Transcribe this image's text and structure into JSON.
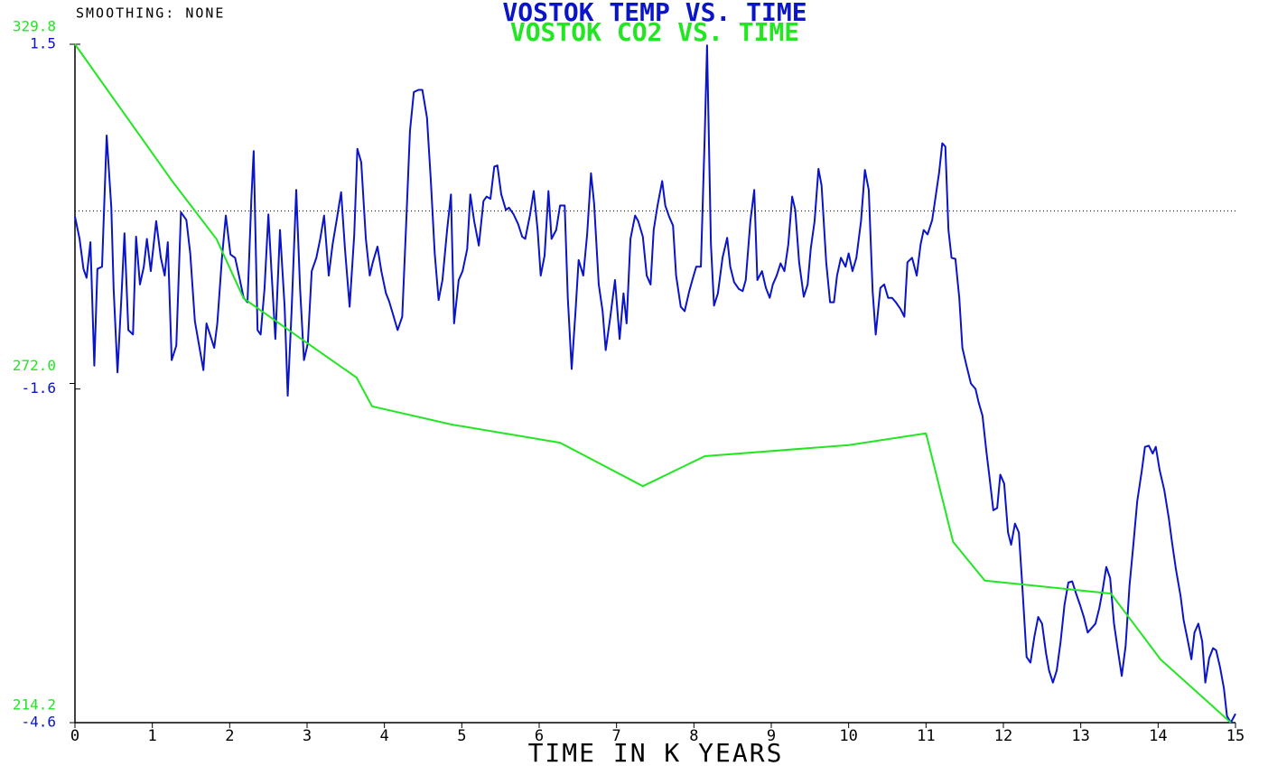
{
  "chart_data": {
    "type": "line",
    "subtitle": "SMOOTHING: NONE",
    "x_label": "TIME IN K YEARS",
    "xlim": [
      0,
      15
    ],
    "xticks": [
      0,
      1,
      2,
      3,
      4,
      5,
      6,
      7,
      8,
      9,
      10,
      11,
      12,
      13,
      14,
      15
    ],
    "ylim": [
      -4.6,
      1.5
    ],
    "yticks": [
      -4.6,
      -1.6,
      1.5
    ],
    "y2lim": [
      214.2,
      329.8
    ],
    "y2ticks": [
      214.2,
      {
        "value": 272,
        "label": "272.0"
      },
      329.8
    ],
    "reference_line": 0,
    "series": [
      {
        "name": "VOSTOK TEMP VS. TIME",
        "color": "#0a14c8",
        "x": [
          0,
          0.06,
          0.11,
          0.15,
          0.2,
          0.25,
          0.29,
          0.35,
          0.41,
          0.47,
          0.5,
          0.55,
          0.6,
          0.64,
          0.69,
          0.75,
          0.79,
          0.84,
          0.89,
          0.93,
          0.98,
          1.05,
          1.11,
          1.16,
          1.2,
          1.25,
          1.31,
          1.37,
          1.44,
          1.49,
          1.55,
          1.61,
          1.66,
          1.7,
          1.75,
          1.8,
          1.84,
          1.9,
          1.95,
          2.01,
          2.07,
          2.12,
          2.18,
          2.23,
          2.28,
          2.31,
          2.36,
          2.4,
          2.45,
          2.5,
          2.54,
          2.59,
          2.65,
          2.71,
          2.75,
          2.8,
          2.86,
          2.91,
          2.96,
          3.01,
          3.06,
          3.12,
          3.17,
          3.22,
          3.28,
          3.33,
          3.39,
          3.44,
          3.49,
          3.55,
          3.61,
          3.65,
          3.7,
          3.76,
          3.81,
          3.85,
          3.91,
          3.96,
          4.02,
          4.06,
          4.12,
          4.17,
          4.23,
          4.28,
          4.33,
          4.38,
          4.44,
          4.49,
          4.55,
          4.6,
          4.65,
          4.7,
          4.75,
          4.81,
          4.86,
          4.9,
          4.96,
          5.01,
          5.07,
          5.11,
          5.16,
          5.22,
          5.28,
          5.32,
          5.37,
          5.42,
          5.46,
          5.51,
          5.57,
          5.61,
          5.67,
          5.73,
          5.78,
          5.82,
          5.88,
          5.93,
          5.98,
          6.02,
          6.07,
          6.12,
          6.16,
          6.22,
          6.27,
          6.33,
          6.37,
          6.42,
          6.47,
          6.51,
          6.57,
          6.62,
          6.67,
          6.71,
          6.77,
          6.82,
          6.86,
          6.92,
          6.98,
          7.04,
          7.09,
          7.13,
          7.18,
          7.24,
          7.28,
          7.34,
          7.39,
          7.44,
          7.48,
          7.53,
          7.59,
          7.63,
          7.68,
          7.73,
          7.77,
          7.83,
          7.88,
          7.94,
          7.98,
          8.03,
          8.09,
          8.14,
          8.17,
          8.22,
          8.26,
          8.31,
          8.37,
          8.43,
          8.47,
          8.52,
          8.58,
          8.63,
          8.67,
          8.73,
          8.78,
          8.82,
          8.88,
          8.93,
          8.98,
          9.02,
          9.07,
          9.12,
          9.17,
          9.22,
          9.27,
          9.31,
          9.36,
          9.42,
          9.47,
          9.51,
          9.56,
          9.61,
          9.65,
          9.71,
          9.76,
          9.81,
          9.85,
          9.9,
          9.96,
          10,
          10.05,
          10.1,
          10.16,
          10.21,
          10.26,
          10.31,
          10.35,
          10.41,
          10.46,
          10.51,
          10.56,
          10.61,
          10.67,
          10.72,
          10.76,
          10.82,
          10.88,
          10.93,
          10.97,
          11.02,
          11.08,
          11.12,
          11.17,
          11.21,
          11.25,
          11.29,
          11.33,
          11.38,
          11.43,
          11.47,
          11.52,
          11.58,
          11.64,
          11.68,
          11.73,
          11.78,
          11.82,
          11.87,
          11.92,
          11.96,
          12.01,
          12.06,
          12.1,
          12.15,
          12.2,
          12.24,
          12.3,
          12.35,
          12.4,
          12.45,
          12.5,
          12.55,
          12.59,
          12.64,
          12.69,
          12.74,
          12.79,
          12.84,
          12.89,
          12.94,
          12.99,
          13.04,
          13.09,
          13.14,
          13.19,
          13.24,
          13.28,
          13.33,
          13.38,
          13.43,
          13.48,
          13.53,
          13.58,
          13.63,
          13.68,
          13.73,
          13.79,
          13.83,
          13.88,
          13.93,
          13.97,
          14.02,
          14.08,
          14.14,
          14.18,
          14.23,
          14.29,
          14.33,
          14.38,
          14.43,
          14.47,
          14.52,
          14.57,
          14.61,
          14.66,
          14.71,
          14.75,
          14.8,
          14.85,
          14.89,
          14.94,
          15
        ],
        "values": [
          -0.05,
          -0.25,
          -0.52,
          -0.6,
          -0.28,
          -1.39,
          -0.52,
          -0.5,
          0.68,
          0.03,
          -0.7,
          -1.45,
          -0.78,
          -0.2,
          -1.07,
          -1.11,
          -0.23,
          -0.66,
          -0.5,
          -0.25,
          -0.54,
          -0.09,
          -0.42,
          -0.58,
          -0.28,
          -1.34,
          -1.21,
          -0.01,
          -0.08,
          -0.38,
          -0.99,
          -1.23,
          -1.43,
          -1.01,
          -1.12,
          -1.23,
          -1.01,
          -0.42,
          -0.04,
          -0.39,
          -0.42,
          -0.58,
          -0.78,
          -0.82,
          0.11,
          0.54,
          -1.07,
          -1.11,
          -0.7,
          -0.03,
          -0.54,
          -1.15,
          -0.17,
          -0.86,
          -1.66,
          -0.9,
          0.19,
          -0.7,
          -1.34,
          -1.19,
          -0.54,
          -0.42,
          -0.25,
          -0.04,
          -0.58,
          -0.3,
          -0.05,
          0.17,
          -0.34,
          -0.86,
          -0.21,
          0.56,
          0.44,
          -0.25,
          -0.58,
          -0.46,
          -0.32,
          -0.54,
          -0.74,
          -0.81,
          -0.95,
          -1.07,
          -0.95,
          -0.13,
          0.72,
          1.07,
          1.09,
          1.09,
          0.84,
          0.27,
          -0.38,
          -0.8,
          -0.62,
          -0.17,
          0.15,
          -1.01,
          -0.62,
          -0.54,
          -0.34,
          0.15,
          -0.09,
          -0.31,
          0.09,
          0.13,
          0.11,
          0.4,
          0.41,
          0.15,
          0.01,
          0.03,
          -0.03,
          -0.12,
          -0.23,
          -0.25,
          -0.04,
          0.18,
          -0.17,
          -0.58,
          -0.4,
          0.18,
          -0.25,
          -0.17,
          0.05,
          0.05,
          -0.78,
          -1.42,
          -0.9,
          -0.44,
          -0.58,
          -0.21,
          0.34,
          0.07,
          -0.66,
          -0.9,
          -1.25,
          -0.95,
          -0.62,
          -1.15,
          -0.74,
          -1.01,
          -0.25,
          -0.04,
          -0.09,
          -0.23,
          -0.58,
          -0.66,
          -0.17,
          0.05,
          0.27,
          0.05,
          -0.05,
          -0.13,
          -0.58,
          -0.86,
          -0.9,
          -0.72,
          -0.62,
          -0.5,
          -0.5,
          0.68,
          1.49,
          -0.3,
          -0.85,
          -0.74,
          -0.42,
          -0.24,
          -0.5,
          -0.64,
          -0.7,
          -0.72,
          -0.62,
          -0.09,
          0.19,
          -0.62,
          -0.54,
          -0.69,
          -0.78,
          -0.66,
          -0.58,
          -0.47,
          -0.54,
          -0.3,
          0.13,
          0.01,
          -0.46,
          -0.77,
          -0.66,
          -0.34,
          -0.09,
          0.38,
          0.23,
          -0.46,
          -0.82,
          -0.82,
          -0.58,
          -0.42,
          -0.5,
          -0.38,
          -0.54,
          -0.42,
          -0.09,
          0.37,
          0.19,
          -0.72,
          -1.11,
          -0.69,
          -0.66,
          -0.78,
          -0.78,
          -0.82,
          -0.88,
          -0.95,
          -0.46,
          -0.42,
          -0.58,
          -0.3,
          -0.17,
          -0.21,
          -0.08,
          0.11,
          0.35,
          0.61,
          0.58,
          -0.17,
          -0.42,
          -0.43,
          -0.78,
          -1.23,
          -1.38,
          -1.55,
          -1.6,
          -1.72,
          -1.84,
          -2.16,
          -2.39,
          -2.69,
          -2.67,
          -2.37,
          -2.45,
          -2.89,
          -3,
          -2.81,
          -2.89,
          -3.32,
          -4.01,
          -4.06,
          -3.83,
          -3.65,
          -3.71,
          -3.97,
          -4.13,
          -4.24,
          -4.13,
          -3.87,
          -3.54,
          -3.34,
          -3.33,
          -3.44,
          -3.54,
          -3.65,
          -3.79,
          -3.75,
          -3.71,
          -3.57,
          -3.42,
          -3.2,
          -3.3,
          -3.71,
          -3.95,
          -4.18,
          -3.91,
          -3.37,
          -3,
          -2.61,
          -2.33,
          -2.12,
          -2.11,
          -2.18,
          -2.12,
          -2.33,
          -2.51,
          -2.77,
          -2.98,
          -3.22,
          -3.46,
          -3.68,
          -3.85,
          -4.03,
          -3.79,
          -3.71,
          -3.87,
          -4.24,
          -4.02,
          -3.93,
          -3.95,
          -4.1,
          -4.29,
          -4.54,
          -4.6,
          -4.52
        ]
      },
      {
        "name": "VOSTOK  CO2 VS. TIME",
        "color": "#22e622",
        "axis": "y2",
        "x": [
          0,
          1.25,
          1.83,
          2.18,
          3,
          3.64,
          3.84,
          4.87,
          6.27,
          7.34,
          8.14,
          10,
          11,
          11.35,
          11.76,
          13.39,
          14.03,
          14.94
        ],
        "values": [
          329.8,
          306.6,
          296.6,
          286.5,
          278.9,
          273,
          268.1,
          265,
          261.9,
          254.5,
          259.6,
          261.5,
          263.5,
          245,
          238.4,
          236.2,
          225,
          214.2
        ]
      }
    ]
  }
}
